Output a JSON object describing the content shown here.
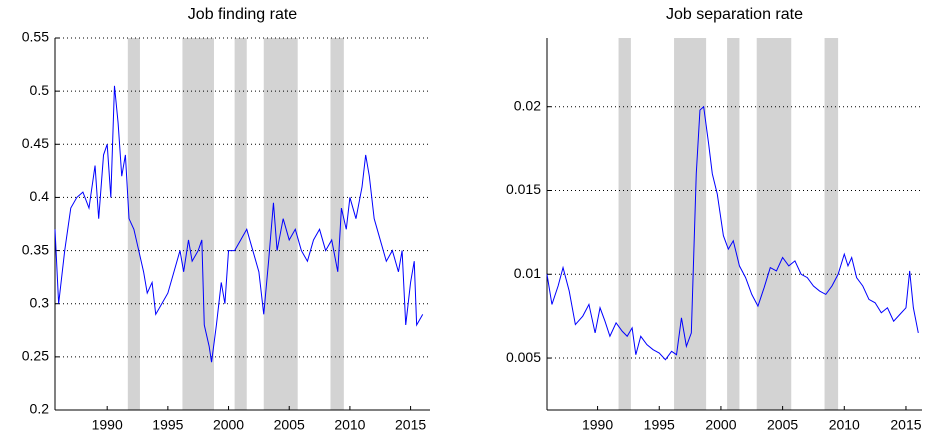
{
  "chart_data": [
    {
      "type": "line",
      "title": "Job finding rate",
      "x": [
        1985.7,
        1986,
        1986.5,
        1987,
        1987.5,
        1988,
        1988.5,
        1989,
        1989.3,
        1989.7,
        1990,
        1990.3,
        1990.6,
        1990.9,
        1991.2,
        1991.5,
        1991.8,
        1992.2,
        1992.6,
        1993,
        1993.3,
        1993.7,
        1994,
        1994.5,
        1995,
        1995.5,
        1996,
        1996.3,
        1996.7,
        1997,
        1997.5,
        1997.8,
        1998,
        1998.4,
        1998.6,
        1999,
        1999.4,
        1999.7,
        2000,
        2000.5,
        2001,
        2001.5,
        2002,
        2002.5,
        2002.9,
        2003.3,
        2003.7,
        2004,
        2004.5,
        2005,
        2005.5,
        2006,
        2006.5,
        2007,
        2007.5,
        2008,
        2008.5,
        2009,
        2009.3,
        2009.7,
        2010,
        2010.5,
        2011,
        2011.3,
        2011.6,
        2012,
        2012.5,
        2013,
        2013.5,
        2014,
        2014.3,
        2014.6,
        2015,
        2015.3,
        2015.5,
        2016
      ],
      "series": [
        {
          "color": "#0000ff",
          "values": [
            0.37,
            0.3,
            0.35,
            0.39,
            0.4,
            0.405,
            0.39,
            0.43,
            0.38,
            0.44,
            0.45,
            0.4,
            0.505,
            0.47,
            0.42,
            0.44,
            0.38,
            0.37,
            0.35,
            0.33,
            0.31,
            0.32,
            0.29,
            0.3,
            0.31,
            0.33,
            0.35,
            0.33,
            0.36,
            0.34,
            0.35,
            0.36,
            0.28,
            0.26,
            0.245,
            0.28,
            0.32,
            0.3,
            0.35,
            0.35,
            0.36,
            0.37,
            0.35,
            0.33,
            0.29,
            0.34,
            0.395,
            0.35,
            0.38,
            0.36,
            0.37,
            0.35,
            0.34,
            0.36,
            0.37,
            0.35,
            0.36,
            0.33,
            0.39,
            0.37,
            0.4,
            0.38,
            0.41,
            0.44,
            0.42,
            0.38,
            0.36,
            0.34,
            0.35,
            0.33,
            0.35,
            0.28,
            0.32,
            0.34,
            0.28,
            0.29
          ]
        }
      ],
      "shaded_regions": [
        [
          1991.7,
          1992.7
        ],
        [
          1996.2,
          1998.8
        ],
        [
          2000.5,
          2001.5
        ],
        [
          2002.9,
          2005.7
        ],
        [
          2008.4,
          2009.5
        ]
      ],
      "xlim": [
        1985.7,
        2016.6
      ],
      "xticks": [
        1990,
        1995,
        2000,
        2005,
        2010,
        2015
      ],
      "ylim": [
        0.2,
        0.55
      ],
      "yticks": [
        0.2,
        0.25,
        0.3,
        0.35,
        0.4,
        0.45,
        0.5,
        0.55
      ],
      "grid": true
    },
    {
      "type": "line",
      "title": "Job separation rate",
      "x": [
        1985.9,
        1986.3,
        1986.8,
        1987.2,
        1987.7,
        1988.2,
        1988.8,
        1989.3,
        1989.8,
        1990.2,
        1990.6,
        1991,
        1991.5,
        1992,
        1992.4,
        1992.8,
        1993.1,
        1993.5,
        1994,
        1994.5,
        1995,
        1995.5,
        1996,
        1996.4,
        1996.8,
        1997.2,
        1997.6,
        1998,
        1998.3,
        1998.6,
        1999,
        1999.3,
        1999.7,
        2000.2,
        2000.6,
        2001,
        2001.5,
        2002,
        2002.5,
        2003,
        2003.5,
        2004,
        2004.5,
        2005,
        2005.5,
        2006,
        2006.5,
        2007,
        2007.5,
        2008,
        2008.5,
        2009,
        2009.5,
        2010,
        2010.3,
        2010.6,
        2011,
        2011.5,
        2012,
        2012.5,
        2013,
        2013.5,
        2014,
        2014.5,
        2015,
        2015.3,
        2015.6,
        2016
      ],
      "series": [
        {
          "color": "#0000ff",
          "values": [
            0.01,
            0.0082,
            0.0093,
            0.0104,
            0.009,
            0.007,
            0.0075,
            0.0082,
            0.0065,
            0.008,
            0.0072,
            0.0063,
            0.0071,
            0.0066,
            0.0063,
            0.0068,
            0.0052,
            0.0063,
            0.0058,
            0.0055,
            0.0053,
            0.0049,
            0.0054,
            0.0052,
            0.0074,
            0.0057,
            0.0065,
            0.016,
            0.0198,
            0.02,
            0.0178,
            0.016,
            0.0148,
            0.0123,
            0.0115,
            0.012,
            0.0105,
            0.0098,
            0.0088,
            0.0081,
            0.0092,
            0.0104,
            0.0102,
            0.011,
            0.0105,
            0.0108,
            0.01,
            0.0098,
            0.0093,
            0.009,
            0.0088,
            0.0093,
            0.01,
            0.0112,
            0.0105,
            0.011,
            0.0098,
            0.0093,
            0.0085,
            0.0083,
            0.0077,
            0.008,
            0.0072,
            0.0076,
            0.008,
            0.0102,
            0.008,
            0.0065
          ]
        }
      ],
      "shaded_regions": [
        [
          1991.7,
          1992.7
        ],
        [
          1996.2,
          1998.8
        ],
        [
          2000.5,
          2001.5
        ],
        [
          2002.9,
          2005.7
        ],
        [
          2008.4,
          2009.5
        ]
      ],
      "xlim": [
        1985.9,
        2016.3
      ],
      "xticks": [
        1990,
        1995,
        2000,
        2005,
        2010,
        2015
      ],
      "ylim": [
        0.0019,
        0.0241
      ],
      "yticks": [
        0.005,
        0.01,
        0.015,
        0.02
      ],
      "grid": true
    }
  ]
}
